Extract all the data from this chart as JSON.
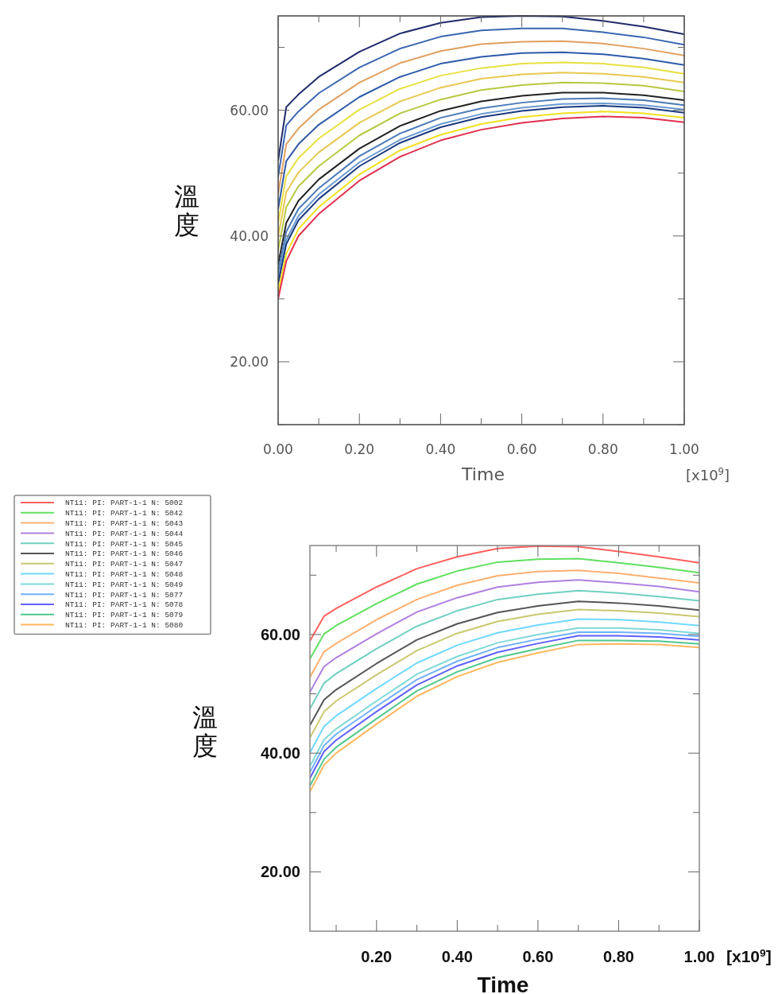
{
  "chart_data": [
    {
      "type": "line",
      "xlabel": "Time",
      "ylabel": "溫度",
      "annotations": [
        "[x10$^{9}$]"
      ],
      "x": [
        0,
        0.02,
        0.05,
        0.1,
        0.2,
        0.3,
        0.4,
        0.5,
        0.6,
        0.7,
        0.8,
        0.9,
        1.0
      ],
      "xlim": [
        0,
        1
      ],
      "xticks": [
        {
          "value": 0,
          "label": "0.00"
        },
        {
          "value": 0.1,
          "label": null
        },
        {
          "value": 0.2,
          "label": "0.20"
        },
        {
          "value": 0.3,
          "label": null
        },
        {
          "value": 0.4,
          "label": "0.40"
        },
        {
          "value": 0.5,
          "label": null
        },
        {
          "value": 0.6,
          "label": "0.60"
        },
        {
          "value": 0.7,
          "label": null
        },
        {
          "value": 0.8,
          "label": "0.80"
        },
        {
          "value": 0.9,
          "label": null
        },
        {
          "value": 1,
          "label": "1.00"
        }
      ],
      "ylim": [
        10,
        75
      ],
      "yticks": [
        {
          "value": 10,
          "label": null
        },
        {
          "value": 20,
          "label": "20.00"
        },
        {
          "value": 30,
          "label": null
        },
        {
          "value": 40,
          "label": "40.00"
        },
        {
          "value": 50,
          "label": null
        },
        {
          "value": 60,
          "label": "60.00"
        },
        {
          "value": 70,
          "label": null
        }
      ],
      "grid": false,
      "legend": false,
      "marker": "none",
      "line_style": "solid",
      "series": [
        {
          "color": "#1f2a6b",
          "values": [
            52,
            60.5,
            62.5,
            65.3,
            69.3,
            72.2,
            73.9,
            74.8,
            75.0,
            74.9,
            74.2,
            73.3,
            72.1
          ]
        },
        {
          "color": "#3a66b0",
          "values": [
            49.4,
            57.6,
            59.8,
            62.7,
            66.8,
            69.8,
            71.7,
            72.7,
            73.0,
            73.0,
            72.4,
            71.6,
            70.4
          ]
        },
        {
          "color": "#e0a060",
          "values": [
            46.7,
            54.6,
            57.1,
            60.1,
            64.4,
            67.5,
            69.4,
            70.5,
            70.9,
            71.0,
            70.6,
            69.8,
            68.7
          ]
        },
        {
          "color": "#2f5aa8",
          "values": [
            44.3,
            51.9,
            54.6,
            57.7,
            62.1,
            65.3,
            67.4,
            68.5,
            69.1,
            69.2,
            68.9,
            68.2,
            67.2
          ]
        },
        {
          "color": "#e8e040",
          "values": [
            42.1,
            49.5,
            52.4,
            55.5,
            60.1,
            63.4,
            65.5,
            66.7,
            67.4,
            67.6,
            67.4,
            66.8,
            65.8
          ]
        },
        {
          "color": "#e8c850",
          "values": [
            39.9,
            47.0,
            50.1,
            53.3,
            58.0,
            61.4,
            63.6,
            65.0,
            65.7,
            66.0,
            65.8,
            65.3,
            64.4
          ]
        },
        {
          "color": "#b8c840",
          "values": [
            37.7,
            44.6,
            47.9,
            51.1,
            56.0,
            59.5,
            61.7,
            63.2,
            64.0,
            64.4,
            64.3,
            63.9,
            63.0
          ]
        },
        {
          "color": "#222222",
          "values": [
            35.5,
            42.1,
            45.6,
            49.0,
            53.9,
            57.5,
            59.9,
            61.4,
            62.3,
            62.8,
            62.8,
            62.4,
            61.6
          ]
        },
        {
          "color": "#4a7ab8",
          "values": [
            34.2,
            40.7,
            44.3,
            47.6,
            52.7,
            56.3,
            58.8,
            60.3,
            61.2,
            61.8,
            61.9,
            61.6,
            60.8
          ]
        },
        {
          "color": "#6a9ad0",
          "values": [
            33.1,
            39.4,
            43.2,
            46.6,
            51.7,
            55.3,
            57.8,
            59.4,
            60.4,
            61.0,
            61.1,
            60.8,
            60.1
          ]
        },
        {
          "color": "#1a3a80",
          "values": [
            32.4,
            38.7,
            42.5,
            45.9,
            51.1,
            54.8,
            57.3,
            58.9,
            59.9,
            60.5,
            60.7,
            60.4,
            59.6
          ]
        },
        {
          "color": "#f0e020",
          "values": [
            31.1,
            37.2,
            41.1,
            44.6,
            49.8,
            53.6,
            56.1,
            57.8,
            58.9,
            59.5,
            59.8,
            59.5,
            58.8
          ]
        },
        {
          "color": "#e03050",
          "values": [
            30,
            36,
            40,
            43.5,
            48.8,
            52.6,
            55.2,
            56.9,
            58.0,
            58.7,
            59.0,
            58.8,
            58.1
          ]
        }
      ]
    },
    {
      "type": "line",
      "xlabel": "Time",
      "ylabel": "溫度",
      "annotations": [
        "[x10$^{9}$]"
      ],
      "x": [
        0.035,
        0.07,
        0.1,
        0.2,
        0.3,
        0.4,
        0.5,
        0.6,
        0.7,
        0.8,
        0.9,
        1.0
      ],
      "xlim": [
        0.035,
        1
      ],
      "xticks": [
        {
          "value": 0.1,
          "label": null
        },
        {
          "value": 0.2,
          "label": "0.20"
        },
        {
          "value": 0.3,
          "label": null
        },
        {
          "value": 0.4,
          "label": "0.40"
        },
        {
          "value": 0.5,
          "label": null
        },
        {
          "value": 0.6,
          "label": "0.60"
        },
        {
          "value": 0.7,
          "label": null
        },
        {
          "value": 0.8,
          "label": "0.80"
        },
        {
          "value": 0.9,
          "label": null
        },
        {
          "value": 1,
          "label": "1.00"
        }
      ],
      "ylim": [
        10,
        75
      ],
      "yticks": [
        {
          "value": 20,
          "label": "20.00"
        },
        {
          "value": 30,
          "label": null
        },
        {
          "value": 40,
          "label": "40.00"
        },
        {
          "value": 50,
          "label": null
        },
        {
          "value": 60,
          "label": "60.00"
        },
        {
          "value": 70,
          "label": null
        }
      ],
      "grid": false,
      "legend": "top left",
      "marker": "none",
      "line_style": "solid",
      "series": [
        {
          "name": "NT11: PI: PART-1-1 N: 5002",
          "color": "#ff6060",
          "values": [
            58.9,
            63.1,
            64.4,
            68.0,
            71.1,
            73.1,
            74.5,
            74.9,
            74.8,
            74.0,
            73.1,
            72.1
          ]
        },
        {
          "name": "NT11: PI: PART-1-1 N: 5042",
          "color": "#60e060",
          "values": [
            55.9,
            60.1,
            61.5,
            65.2,
            68.5,
            70.7,
            72.2,
            72.7,
            72.8,
            72.1,
            71.3,
            70.4
          ]
        },
        {
          "name": "NT11: PI: PART-1-1 N: 5043",
          "color": "#ffb070",
          "values": [
            52.8,
            57.1,
            58.5,
            62.5,
            65.9,
            68.3,
            69.9,
            70.6,
            70.8,
            70.3,
            69.5,
            68.7
          ]
        },
        {
          "name": "NT11: PI: PART-1-1 N: 5044",
          "color": "#b080e0",
          "values": [
            50.3,
            54.6,
            56.1,
            60.1,
            63.8,
            66.2,
            68.0,
            68.8,
            69.2,
            68.7,
            68.1,
            67.2
          ]
        },
        {
          "name": "NT11: PI: PART-1-1 N: 5045",
          "color": "#70d0c0",
          "values": [
            47.5,
            51.8,
            53.4,
            57.6,
            61.4,
            64.0,
            65.9,
            66.8,
            67.4,
            67.0,
            66.4,
            65.7
          ]
        },
        {
          "name": "NT11: PI: PART-1-1 N: 5046",
          "color": "#555555",
          "values": [
            44.7,
            49.0,
            50.7,
            55.1,
            59.1,
            61.8,
            63.7,
            64.8,
            65.6,
            65.3,
            64.8,
            64.1
          ]
        },
        {
          "name": "NT11: PI: PART-1-1 N: 5047",
          "color": "#c8c870",
          "values": [
            42.6,
            47.0,
            48.8,
            53.2,
            57.3,
            60.2,
            62.2,
            63.4,
            64.2,
            64.0,
            63.6,
            63.0
          ]
        },
        {
          "name": "NT11: PI: PART-1-1 N: 5048",
          "color": "#70d8ff",
          "values": [
            40.1,
            44.5,
            46.3,
            50.9,
            55.2,
            58.2,
            60.3,
            61.6,
            62.6,
            62.5,
            62.1,
            61.5
          ]
        },
        {
          "name": "NT11: PI: PART-1-1 N: 5049",
          "color": "#80d8d8",
          "values": [
            37.8,
            42.3,
            44.1,
            48.8,
            53.3,
            56.3,
            58.6,
            60.0,
            61.1,
            61.1,
            60.8,
            60.2
          ]
        },
        {
          "name": "NT11: PI: PART-1-1 N: 5077",
          "color": "#70b0ff",
          "values": [
            36.8,
            41.3,
            43.2,
            47.9,
            52.4,
            55.5,
            57.8,
            59.2,
            60.4,
            60.4,
            60.2,
            59.7
          ]
        },
        {
          "name": "NT11: PI: PART-1-1 N: 5078",
          "color": "#6060ff",
          "values": [
            35.8,
            40.3,
            42.2,
            47.0,
            51.5,
            54.7,
            57.0,
            58.5,
            59.8,
            59.8,
            59.6,
            59.1
          ]
        },
        {
          "name": "NT11: PI: PART-1-1 N: 5079",
          "color": "#50c890",
          "values": [
            34.5,
            39.0,
            41.0,
            45.8,
            50.5,
            53.7,
            56.1,
            57.6,
            59.0,
            59.0,
            58.9,
            58.4
          ]
        },
        {
          "name": "NT11: PI: PART-1-1 N: 5080",
          "color": "#ffb860",
          "values": [
            33.5,
            38.0,
            40.0,
            44.9,
            49.6,
            52.9,
            55.3,
            56.9,
            58.3,
            58.4,
            58.3,
            57.8
          ]
        }
      ]
    }
  ]
}
